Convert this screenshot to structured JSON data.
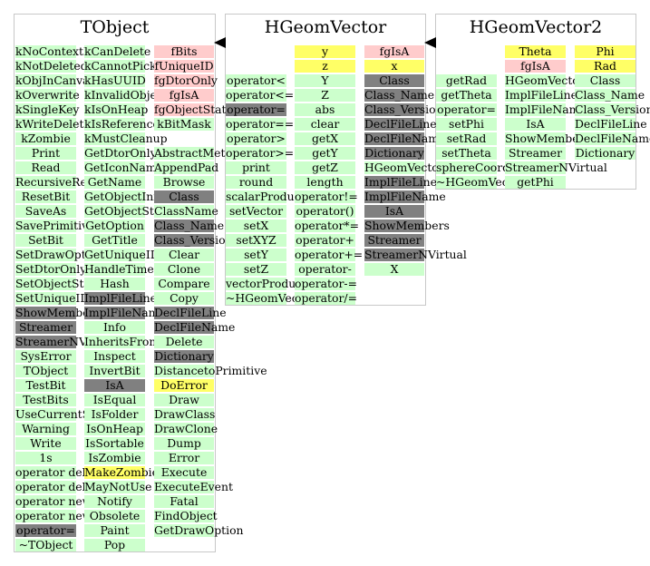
{
  "colors": {
    "green": "#ccffcc",
    "dark": "#808080",
    "pink": "#ffcccc",
    "yellow": "#ffff66",
    "border": "#c8c8c8"
  },
  "classes": [
    {
      "title": "TObject",
      "columns": [
        {
          "items": [
            {
              "t": "kNoContextMenu",
              "c": "g"
            },
            {
              "t": "kNotDeleted",
              "c": "g"
            },
            {
              "t": "kObjInCanvas",
              "c": "g"
            },
            {
              "t": "kOverwrite",
              "c": "g"
            },
            {
              "t": "kSingleKey",
              "c": "g"
            },
            {
              "t": "kWriteDelete",
              "c": "g"
            },
            {
              "t": "kZombie",
              "c": "g"
            },
            {
              "t": "Print",
              "c": "g"
            },
            {
              "t": "Read",
              "c": "g"
            },
            {
              "t": "RecursiveRemove",
              "c": "g"
            },
            {
              "t": "ResetBit",
              "c": "g"
            },
            {
              "t": "SaveAs",
              "c": "g"
            },
            {
              "t": "SavePrimitive",
              "c": "g"
            },
            {
              "t": "SetBit",
              "c": "g"
            },
            {
              "t": "SetDrawOption",
              "c": "g"
            },
            {
              "t": "SetDtorOnly",
              "c": "g"
            },
            {
              "t": "SetObjectStat",
              "c": "g"
            },
            {
              "t": "SetUniqueID",
              "c": "g"
            },
            {
              "t": "ShowMembers",
              "c": "d"
            },
            {
              "t": "Streamer",
              "c": "d"
            },
            {
              "t": "StreamerNVirtual",
              "c": "d"
            },
            {
              "t": "SysError",
              "c": "g"
            },
            {
              "t": "TObject",
              "c": "g"
            },
            {
              "t": "TestBit",
              "c": "g"
            },
            {
              "t": "TestBits",
              "c": "g"
            },
            {
              "t": "UseCurrentStyle",
              "c": "g"
            },
            {
              "t": "Warning",
              "c": "g"
            },
            {
              "t": "Write",
              "c": "g"
            },
            {
              "t": "1s",
              "c": "g"
            },
            {
              "t": "operator delete",
              "c": "g"
            },
            {
              "t": "operator delete[]",
              "c": "g"
            },
            {
              "t": "operator new",
              "c": "g"
            },
            {
              "t": "operator new[]",
              "c": "g"
            },
            {
              "t": "operator=",
              "c": "d"
            },
            {
              "t": "~TObject",
              "c": "g"
            }
          ]
        },
        {
          "items": [
            {
              "t": "kCanDelete",
              "c": "g"
            },
            {
              "t": "kCannotPick",
              "c": "g"
            },
            {
              "t": "kHasUUID",
              "c": "g"
            },
            {
              "t": "kInvalidObject",
              "c": "g"
            },
            {
              "t": "kIsOnHeap",
              "c": "g"
            },
            {
              "t": "kIsReferenced",
              "c": "g"
            },
            {
              "t": "kMustCleanup",
              "c": "g"
            },
            {
              "t": "GetDtorOnly",
              "c": "g"
            },
            {
              "t": "GetIconName",
              "c": "g"
            },
            {
              "t": "GetName",
              "c": "g"
            },
            {
              "t": "GetObjectInfo",
              "c": "g"
            },
            {
              "t": "GetObjectStat",
              "c": "g"
            },
            {
              "t": "GetOption",
              "c": "g"
            },
            {
              "t": "GetTitle",
              "c": "g"
            },
            {
              "t": "GetUniqueID",
              "c": "g"
            },
            {
              "t": "HandleTimer",
              "c": "g"
            },
            {
              "t": "Hash",
              "c": "g"
            },
            {
              "t": "ImplFileLine",
              "c": "d"
            },
            {
              "t": "ImplFileName",
              "c": "d"
            },
            {
              "t": "Info",
              "c": "g"
            },
            {
              "t": "InheritsFrom",
              "c": "g"
            },
            {
              "t": "Inspect",
              "c": "g"
            },
            {
              "t": "InvertBit",
              "c": "g"
            },
            {
              "t": "IsA",
              "c": "d"
            },
            {
              "t": "IsEqual",
              "c": "g"
            },
            {
              "t": "IsFolder",
              "c": "g"
            },
            {
              "t": "IsOnHeap",
              "c": "g"
            },
            {
              "t": "IsSortable",
              "c": "g"
            },
            {
              "t": "IsZombie",
              "c": "g"
            },
            {
              "t": "MakeZombie",
              "c": "y"
            },
            {
              "t": "MayNotUse",
              "c": "g"
            },
            {
              "t": "Notify",
              "c": "g"
            },
            {
              "t": "Obsolete",
              "c": "g"
            },
            {
              "t": "Paint",
              "c": "g"
            },
            {
              "t": "Pop",
              "c": "g"
            }
          ]
        },
        {
          "items": [
            {
              "t": "fBits",
              "c": "p"
            },
            {
              "t": "fUniqueID",
              "c": "p"
            },
            {
              "t": "fgDtorOnly",
              "c": "p"
            },
            {
              "t": "fgIsA",
              "c": "p"
            },
            {
              "t": "fgObjectStat",
              "c": "p"
            },
            {
              "t": "kBitMask",
              "c": "g"
            },
            {
              "t": "",
              "c": "n"
            },
            {
              "t": "AbstractMethod",
              "c": "g"
            },
            {
              "t": "AppendPad",
              "c": "g"
            },
            {
              "t": "Browse",
              "c": "g"
            },
            {
              "t": "Class",
              "c": "d"
            },
            {
              "t": "ClassName",
              "c": "g"
            },
            {
              "t": "Class_Name",
              "c": "d"
            },
            {
              "t": "Class_Version",
              "c": "d"
            },
            {
              "t": "Clear",
              "c": "g"
            },
            {
              "t": "Clone",
              "c": "g"
            },
            {
              "t": "Compare",
              "c": "g"
            },
            {
              "t": "Copy",
              "c": "g"
            },
            {
              "t": "DeclFileLine",
              "c": "d"
            },
            {
              "t": "DeclFileName",
              "c": "d"
            },
            {
              "t": "Delete",
              "c": "g"
            },
            {
              "t": "Dictionary",
              "c": "d"
            },
            {
              "t": "DistancetoPrimitive",
              "c": "g"
            },
            {
              "t": "DoError",
              "c": "y"
            },
            {
              "t": "Draw",
              "c": "g"
            },
            {
              "t": "DrawClass",
              "c": "g"
            },
            {
              "t": "DrawClone",
              "c": "g"
            },
            {
              "t": "Dump",
              "c": "g"
            },
            {
              "t": "Error",
              "c": "g"
            },
            {
              "t": "Execute",
              "c": "g"
            },
            {
              "t": "ExecuteEvent",
              "c": "g"
            },
            {
              "t": "Fatal",
              "c": "g"
            },
            {
              "t": "FindObject",
              "c": "g"
            },
            {
              "t": "GetDrawOption",
              "c": "g"
            }
          ]
        }
      ]
    },
    {
      "title": "HGeomVector",
      "columns": [
        {
          "items": [
            {
              "t": "",
              "c": "n"
            },
            {
              "t": "",
              "c": "n"
            },
            {
              "t": "operator<",
              "c": "g"
            },
            {
              "t": "operator<=",
              "c": "g"
            },
            {
              "t": "operator=",
              "c": "d"
            },
            {
              "t": "operator==",
              "c": "g"
            },
            {
              "t": "operator>",
              "c": "g"
            },
            {
              "t": "operator>=",
              "c": "g"
            },
            {
              "t": "print",
              "c": "g"
            },
            {
              "t": "round",
              "c": "g"
            },
            {
              "t": "scalarProduct",
              "c": "g"
            },
            {
              "t": "setVector",
              "c": "g"
            },
            {
              "t": "setX",
              "c": "g"
            },
            {
              "t": "setXYZ",
              "c": "g"
            },
            {
              "t": "setY",
              "c": "g"
            },
            {
              "t": "setZ",
              "c": "g"
            },
            {
              "t": "vectorProduct",
              "c": "g"
            },
            {
              "t": "~HGeomVector",
              "c": "g"
            }
          ]
        },
        {
          "items": [
            {
              "t": "y",
              "c": "y"
            },
            {
              "t": "z",
              "c": "y"
            },
            {
              "t": "Y",
              "c": "g"
            },
            {
              "t": "Z",
              "c": "g"
            },
            {
              "t": "abs",
              "c": "g"
            },
            {
              "t": "clear",
              "c": "g"
            },
            {
              "t": "getX",
              "c": "g"
            },
            {
              "t": "getY",
              "c": "g"
            },
            {
              "t": "getZ",
              "c": "g"
            },
            {
              "t": "length",
              "c": "g"
            },
            {
              "t": "operator!=",
              "c": "g"
            },
            {
              "t": "operator()",
              "c": "g"
            },
            {
              "t": "operator*=",
              "c": "g"
            },
            {
              "t": "operator+",
              "c": "g"
            },
            {
              "t": "operator+=",
              "c": "g"
            },
            {
              "t": "operator-",
              "c": "g"
            },
            {
              "t": "operator-=",
              "c": "g"
            },
            {
              "t": "operator/=",
              "c": "g"
            }
          ]
        },
        {
          "items": [
            {
              "t": "fgIsA",
              "c": "p"
            },
            {
              "t": "x",
              "c": "y"
            },
            {
              "t": "Class",
              "c": "d"
            },
            {
              "t": "Class_Name",
              "c": "d"
            },
            {
              "t": "Class_Version",
              "c": "d"
            },
            {
              "t": "DeclFileLine",
              "c": "d"
            },
            {
              "t": "DeclFileName",
              "c": "d"
            },
            {
              "t": "Dictionary",
              "c": "d"
            },
            {
              "t": "HGeomVector",
              "c": "g"
            },
            {
              "t": "ImplFileLine",
              "c": "d"
            },
            {
              "t": "ImplFileName",
              "c": "d"
            },
            {
              "t": "IsA",
              "c": "d"
            },
            {
              "t": "ShowMembers",
              "c": "d"
            },
            {
              "t": "Streamer",
              "c": "d"
            },
            {
              "t": "StreamerNVirtual",
              "c": "d"
            },
            {
              "t": "X",
              "c": "g"
            }
          ]
        }
      ]
    },
    {
      "title": "HGeomVector2",
      "columns": [
        {
          "items": [
            {
              "t": "",
              "c": "n"
            },
            {
              "t": "",
              "c": "n"
            },
            {
              "t": "getRad",
              "c": "g"
            },
            {
              "t": "getTheta",
              "c": "g"
            },
            {
              "t": "operator=",
              "c": "g"
            },
            {
              "t": "setPhi",
              "c": "g"
            },
            {
              "t": "setRad",
              "c": "g"
            },
            {
              "t": "setTheta",
              "c": "g"
            },
            {
              "t": "sphereCoord",
              "c": "g"
            },
            {
              "t": "~HGeomVector2",
              "c": "g"
            }
          ]
        },
        {
          "items": [
            {
              "t": "Theta",
              "c": "y"
            },
            {
              "t": "fgIsA",
              "c": "p"
            },
            {
              "t": "HGeomVector2",
              "c": "g"
            },
            {
              "t": "ImplFileLine",
              "c": "g"
            },
            {
              "t": "ImplFileName",
              "c": "g"
            },
            {
              "t": "IsA",
              "c": "g"
            },
            {
              "t": "ShowMembers",
              "c": "g"
            },
            {
              "t": "Streamer",
              "c": "g"
            },
            {
              "t": "StreamerNVirtual",
              "c": "g"
            },
            {
              "t": "getPhi",
              "c": "g"
            }
          ]
        },
        {
          "items": [
            {
              "t": "Phi",
              "c": "y"
            },
            {
              "t": "Rad",
              "c": "y"
            },
            {
              "t": "Class",
              "c": "g"
            },
            {
              "t": "Class_Name",
              "c": "g"
            },
            {
              "t": "Class_Version",
              "c": "g"
            },
            {
              "t": "DeclFileLine",
              "c": "g"
            },
            {
              "t": "DeclFileName",
              "c": "g"
            },
            {
              "t": "Dictionary",
              "c": "g"
            }
          ]
        }
      ]
    }
  ],
  "inheritance": [
    {
      "from": "HGeomVector",
      "to": "TObject"
    },
    {
      "from": "HGeomVector2",
      "to": "HGeomVector"
    }
  ]
}
